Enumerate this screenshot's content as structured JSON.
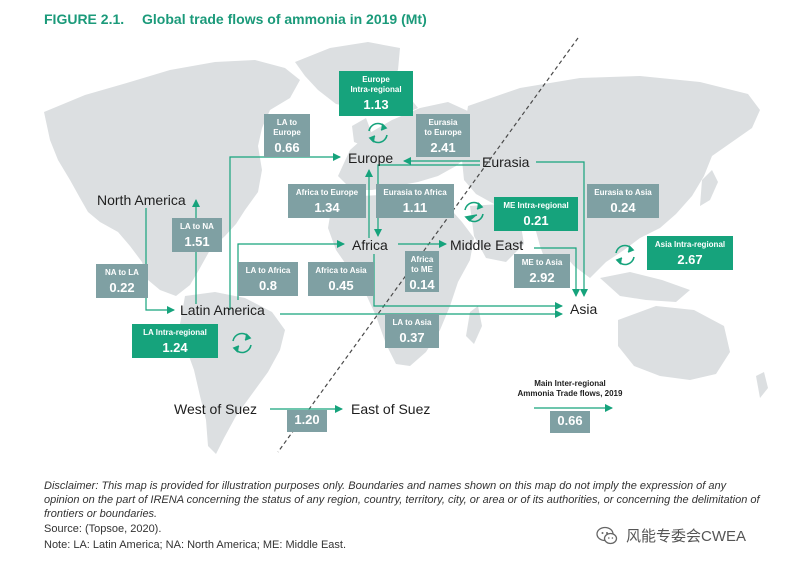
{
  "figure": {
    "number": "FIGURE 2.1.",
    "title": "Global trade flows of ammonia in 2019 (Mt)"
  },
  "regions": {
    "europe": "Europe",
    "eurasia": "Eurasia",
    "north_america": "North America",
    "africa": "Africa",
    "middle_east": "Middle East",
    "latin_america": "Latin America",
    "asia": "Asia",
    "west_of_suez": "West of Suez",
    "east_of_suez": "East of Suez"
  },
  "flows": [
    {
      "id": "europe-intra",
      "label_lines": [
        "Europe",
        "Intra-regional"
      ],
      "value": "1.13",
      "intra": true
    },
    {
      "id": "la-to-europe",
      "label_lines": [
        "LA to",
        "Europe"
      ],
      "value": "0.66",
      "intra": false
    },
    {
      "id": "eurasia-to-europe",
      "label_lines": [
        "Eurasia",
        "to Europe"
      ],
      "value": "2.41",
      "intra": false
    },
    {
      "id": "africa-to-europe",
      "label_lines": [
        "Africa to Europe"
      ],
      "value": "1.34",
      "intra": false
    },
    {
      "id": "eurasia-to-africa",
      "label_lines": [
        "Eurasia to Africa"
      ],
      "value": "1.11",
      "intra": false
    },
    {
      "id": "me-intra",
      "label_lines": [
        "ME Intra-regional"
      ],
      "value": "0.21",
      "intra": true
    },
    {
      "id": "eurasia-to-asia",
      "label_lines": [
        "Eurasia to Asia"
      ],
      "value": "0.24",
      "intra": false
    },
    {
      "id": "la-to-na",
      "label_lines": [
        "LA to NA"
      ],
      "value": "1.51",
      "intra": false
    },
    {
      "id": "asia-intra",
      "label_lines": [
        "Asia Intra-regional"
      ],
      "value": "2.67",
      "intra": true
    },
    {
      "id": "africa-to-me",
      "label_lines": [
        "Africa",
        "to ME"
      ],
      "value": "0.14",
      "intra": false
    },
    {
      "id": "me-to-asia",
      "label_lines": [
        "ME to Asia"
      ],
      "value": "2.92",
      "intra": false
    },
    {
      "id": "na-to-la",
      "label_lines": [
        "NA to LA"
      ],
      "value": "0.22",
      "intra": false
    },
    {
      "id": "la-to-africa",
      "label_lines": [
        "LA to Africa"
      ],
      "value": "0.8",
      "intra": false
    },
    {
      "id": "africa-to-asia",
      "label_lines": [
        "Africa to Asia"
      ],
      "value": "0.45",
      "intra": false
    },
    {
      "id": "la-intra",
      "label_lines": [
        "LA Intra-regional"
      ],
      "value": "1.24",
      "intra": true
    },
    {
      "id": "la-to-asia",
      "label_lines": [
        "LA to Asia"
      ],
      "value": "0.37",
      "intra": false
    },
    {
      "id": "west-to-east-suez",
      "label_lines": [],
      "value": "1.20",
      "intra": false
    }
  ],
  "legend": {
    "title_line1": "Main Inter-regional",
    "title_line2": "Ammonia Trade flows, 2019",
    "value": "0.66"
  },
  "colors": {
    "title": "#1b9a7a",
    "land": "#dcdfe1",
    "arrow": "#16a37c",
    "inter_box": "#7fa0a3",
    "intra_box": "#16a37c"
  },
  "disclaimer": "Disclaimer: This map is provided for illustration purposes only. Boundaries and names shown on this map do not imply the expression of any opinion on the part of IRENA concerning the status of any region, country, territory, city, or area or of its authorities, or concerning the delimitation of frontiers or boundaries.",
  "source": "Source: (Topsoe, 2020).",
  "note": "Note: LA: Latin America; NA: North America; ME: Middle East.",
  "watermark": "风能专委会CWEA"
}
